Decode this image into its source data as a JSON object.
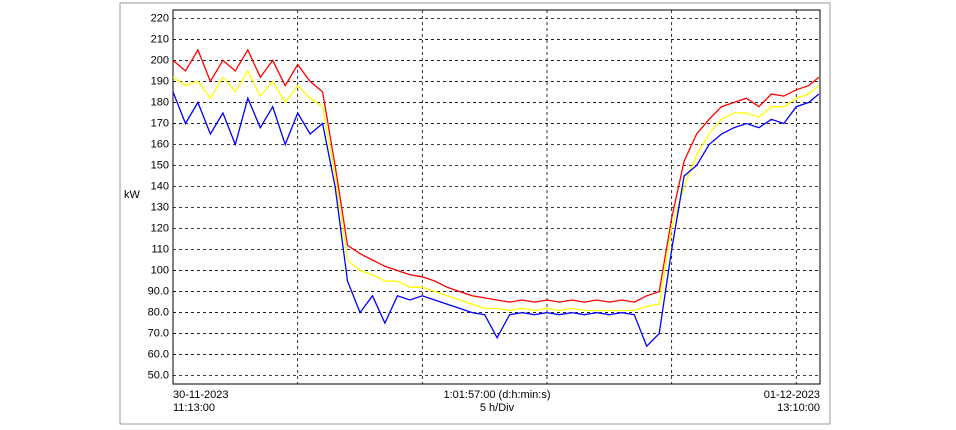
{
  "chart_data": {
    "type": "line",
    "y_label": "kW",
    "x_start_label": [
      "30-11-2023",
      "11:13:00"
    ],
    "x_center_label": [
      "1:01:57:00 (d:h:min:s)",
      "5 h/Div"
    ],
    "x_end_label": [
      "01-12-2023",
      "13:10:00"
    ],
    "xlim": [
      0,
      25.95
    ],
    "xticks": [
      5,
      10,
      15,
      20,
      25
    ],
    "ylim": [
      46,
      224
    ],
    "yticks": [
      {
        "value": 50,
        "label": "50.0"
      },
      {
        "value": 60,
        "label": "60.0"
      },
      {
        "value": 70,
        "label": "70.0"
      },
      {
        "value": 80,
        "label": "80.0"
      },
      {
        "value": 90,
        "label": "90.0"
      },
      100,
      110,
      120,
      130,
      140,
      150,
      160,
      170,
      180,
      190,
      200,
      210,
      220
    ],
    "grid": true,
    "x": [
      0,
      0.5,
      1,
      1.5,
      2,
      2.5,
      3,
      3.5,
      4,
      4.5,
      5,
      5.5,
      6,
      6.5,
      7,
      7.5,
      8,
      8.5,
      9,
      9.5,
      10,
      10.5,
      11,
      11.5,
      12,
      12.5,
      13,
      13.5,
      14,
      14.5,
      15,
      15.5,
      16,
      16.5,
      17,
      17.5,
      18,
      18.5,
      19,
      19.5,
      20,
      20.5,
      21,
      21.5,
      22,
      22.5,
      23,
      23.5,
      24,
      24.5,
      25,
      25.5,
      25.9
    ],
    "series": [
      {
        "color": "#ffff00",
        "values": [
          192,
          188,
          190,
          182,
          192,
          185,
          195,
          183,
          190,
          180,
          188,
          182,
          178,
          145,
          105,
          100,
          98,
          95,
          95,
          92,
          92,
          90,
          88,
          86,
          84,
          82,
          82,
          81,
          82,
          81,
          82,
          81,
          82,
          81,
          81,
          81,
          81,
          81,
          83,
          84,
          120,
          140,
          155,
          165,
          172,
          175,
          175,
          173,
          178,
          178,
          182,
          184,
          188
        ]
      },
      {
        "color": "#0000ff",
        "values": [
          185,
          170,
          180,
          165,
          175,
          160,
          182,
          168,
          178,
          160,
          175,
          165,
          170,
          140,
          95,
          80,
          88,
          75,
          88,
          86,
          88,
          86,
          84,
          82,
          80,
          79,
          68,
          79,
          80,
          79,
          80,
          79,
          80,
          79,
          80,
          79,
          80,
          79,
          64,
          70,
          110,
          145,
          150,
          160,
          165,
          168,
          170,
          168,
          172,
          170,
          178,
          180,
          184
        ]
      },
      {
        "color": "#ff0000",
        "values": [
          200,
          195,
          205,
          190,
          200,
          195,
          205,
          192,
          200,
          188,
          198,
          190,
          185,
          150,
          112,
          108,
          105,
          102,
          100,
          98,
          97,
          95,
          92,
          90,
          88,
          87,
          86,
          85,
          86,
          85,
          86,
          85,
          86,
          85,
          86,
          85,
          86,
          85,
          88,
          90,
          125,
          152,
          165,
          172,
          178,
          180,
          182,
          178,
          184,
          183,
          186,
          188,
          192
        ]
      }
    ]
  }
}
